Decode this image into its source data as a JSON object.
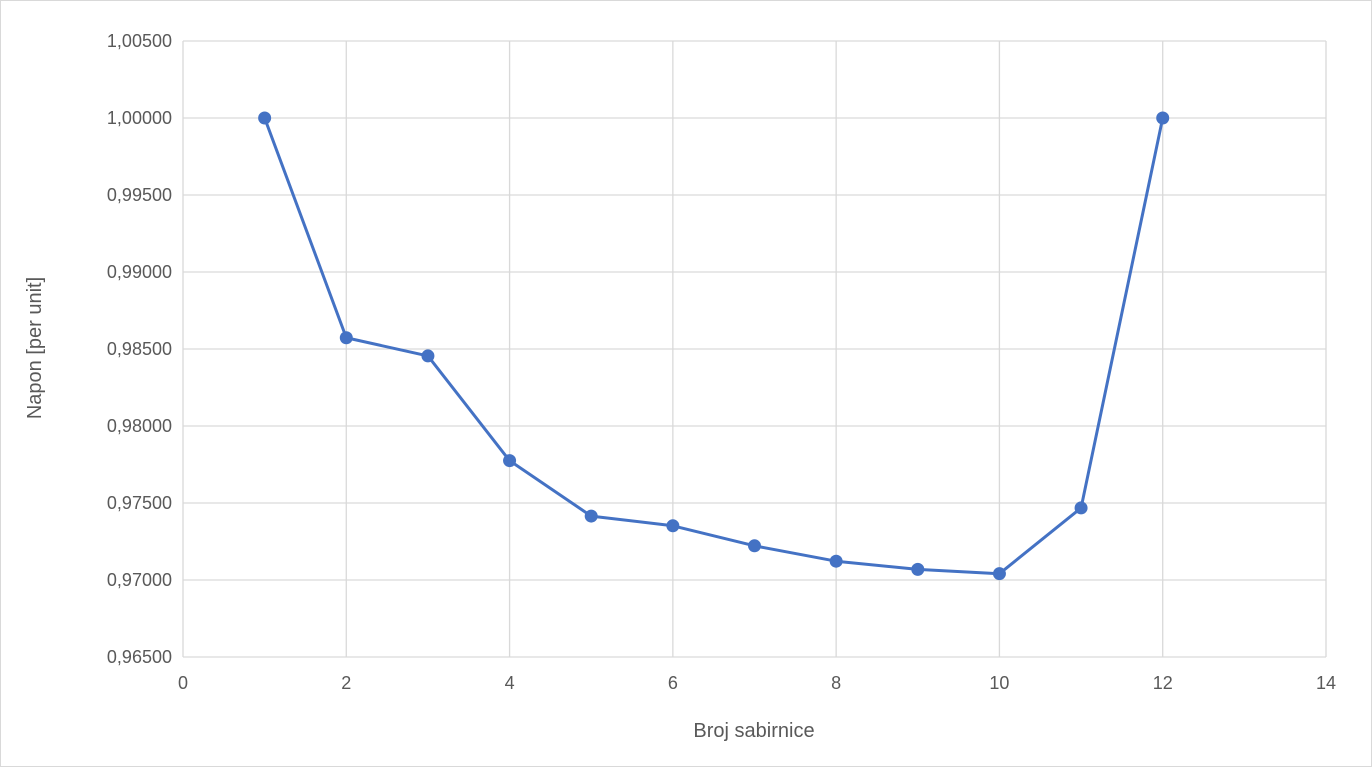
{
  "chart_data": {
    "type": "line",
    "title": "",
    "xlabel": "Broj sabirnice",
    "ylabel": "Napon [per unit]",
    "xlim": [
      0,
      14
    ],
    "ylim": [
      0.965,
      1.005
    ],
    "x_ticks": [
      0,
      2,
      4,
      6,
      8,
      10,
      12,
      14
    ],
    "x_tick_labels": [
      "0",
      "2",
      "4",
      "6",
      "8",
      "10",
      "12",
      "14"
    ],
    "y_ticks": [
      0.965,
      0.97,
      0.975,
      0.98,
      0.985,
      0.99,
      0.995,
      1.0,
      1.005
    ],
    "y_tick_labels": [
      "0,96500",
      "0,97000",
      "0,97500",
      "0,98000",
      "0,98500",
      "0,99000",
      "0,99500",
      "1,00000",
      "1,00500"
    ],
    "grid": true,
    "legend": "none",
    "series": [
      {
        "color": "#4472c4",
        "marker": "circle",
        "x": [
          1,
          2,
          3,
          4,
          5,
          6,
          7,
          8,
          9,
          10,
          11,
          12
        ],
        "y": [
          1.0,
          0.98573,
          0.98455,
          0.97775,
          0.97415,
          0.97352,
          0.97222,
          0.97122,
          0.97069,
          0.97041,
          0.97468,
          1.0
        ]
      }
    ],
    "colors": {
      "grid": "#d9d9d9",
      "text": "#595959",
      "series": "#4472c4"
    }
  }
}
